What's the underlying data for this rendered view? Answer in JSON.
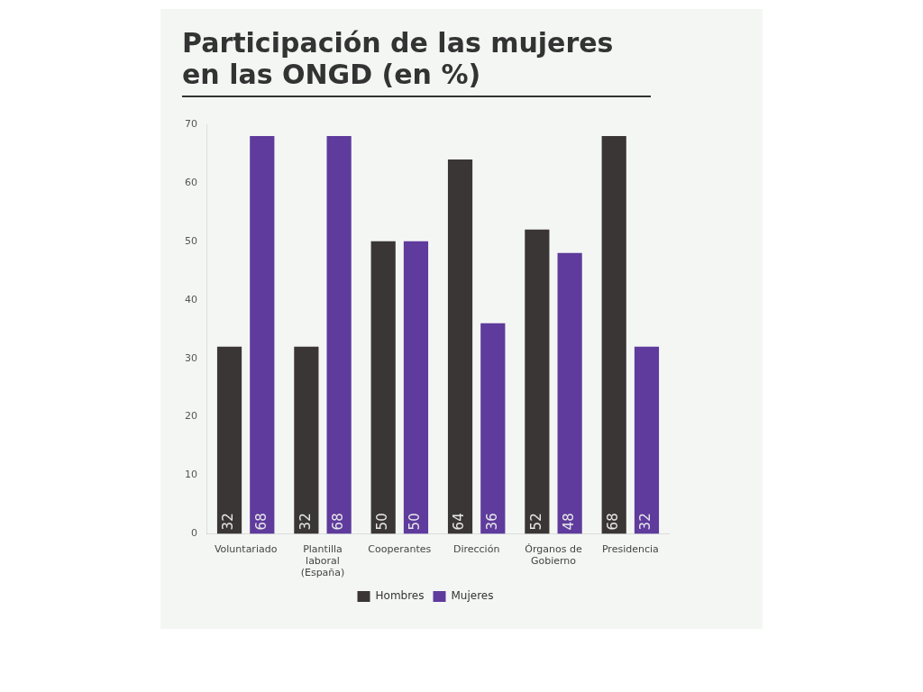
{
  "chart_data": {
    "type": "bar",
    "title": "Participación de las mujeres en las ONGD (en %)",
    "categories": [
      "Voluntariado",
      "Plantilla laboral (España)",
      "Cooperantes",
      "Dirección",
      "Órganos de Gobierno",
      "Presidencia"
    ],
    "series": [
      {
        "name": "Hombres",
        "color": "#3b3636",
        "values": [
          32,
          32,
          50,
          64,
          52,
          68
        ]
      },
      {
        "name": "Mujeres",
        "color": "#5e3b9c",
        "values": [
          68,
          68,
          50,
          36,
          48,
          32
        ]
      }
    ],
    "ylim": [
      0,
      70
    ],
    "yticks": [
      0,
      10,
      20,
      30,
      40,
      50,
      60,
      70
    ],
    "grid": false,
    "legend": "bottom",
    "data_labels": true
  }
}
